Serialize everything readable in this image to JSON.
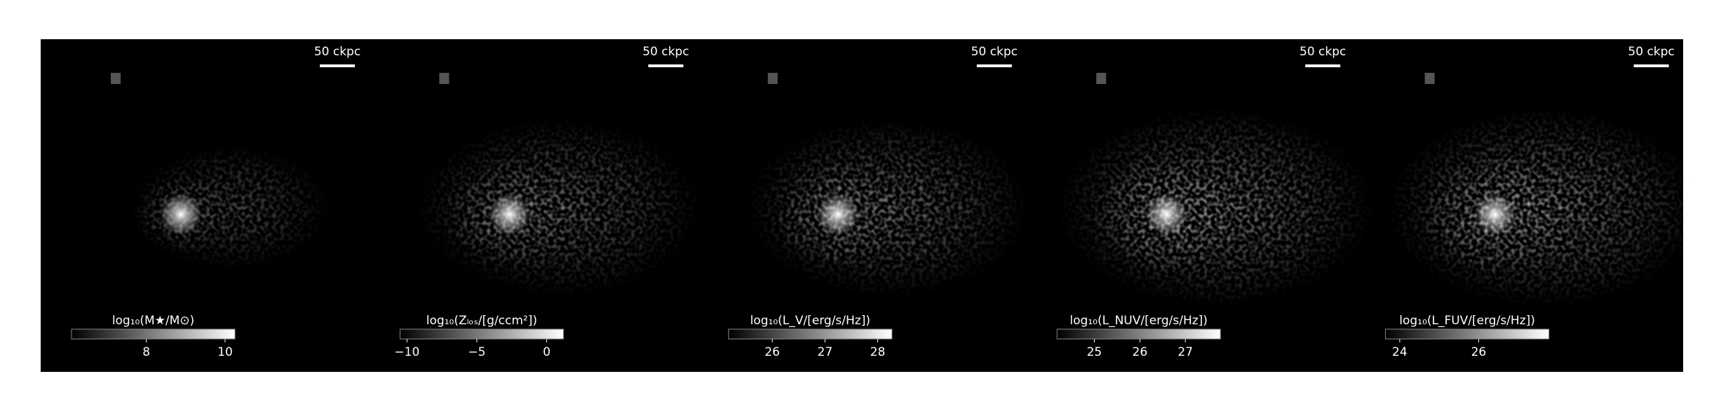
{
  "panels": [
    {
      "scalebar": "50 ckpc",
      "colorbar_label": "log₁₀(M★/M⊙)",
      "clim": [
        6.1,
        10.25
      ],
      "colorbar_ticks": [
        8,
        10
      ],
      "brightness": 0.55,
      "spread": 0.6
    },
    {
      "scalebar": "50 ckpc",
      "colorbar_label": "log₁₀(Zₗₒₛ/[g/ccm²])",
      "clim": [
        -10.5,
        1.2
      ],
      "colorbar_ticks": [
        {
          "value": -10,
          "label": "−10"
        },
        {
          "value": -5,
          "label": "−5"
        },
        {
          "value": 0,
          "label": "0"
        }
      ],
      "brightness": 0.7,
      "spread": 0.85
    },
    {
      "scalebar": "50 ckpc",
      "colorbar_label": "log₁₀(L_V/[erg/s/Hz])",
      "clim": [
        25.17,
        28.27
      ],
      "colorbar_ticks": [
        26,
        27,
        28
      ],
      "brightness": 0.75,
      "spread": 0.85
    },
    {
      "scalebar": "50 ckpc",
      "colorbar_label": "log₁₀(L_NUV/[erg/s/Hz])",
      "clim": [
        24.18,
        27.77
      ],
      "colorbar_ticks": [
        25,
        26,
        27
      ],
      "brightness": 0.85,
      "spread": 0.95
    },
    {
      "scalebar": "50 ckpc",
      "colorbar_label": "log₁₀(L_FUV/[erg/s/Hz])",
      "clim": [
        23.64,
        27.78
      ],
      "colorbar_ticks": [
        24,
        26
      ],
      "brightness": 0.85,
      "spread": 0.95
    }
  ]
}
